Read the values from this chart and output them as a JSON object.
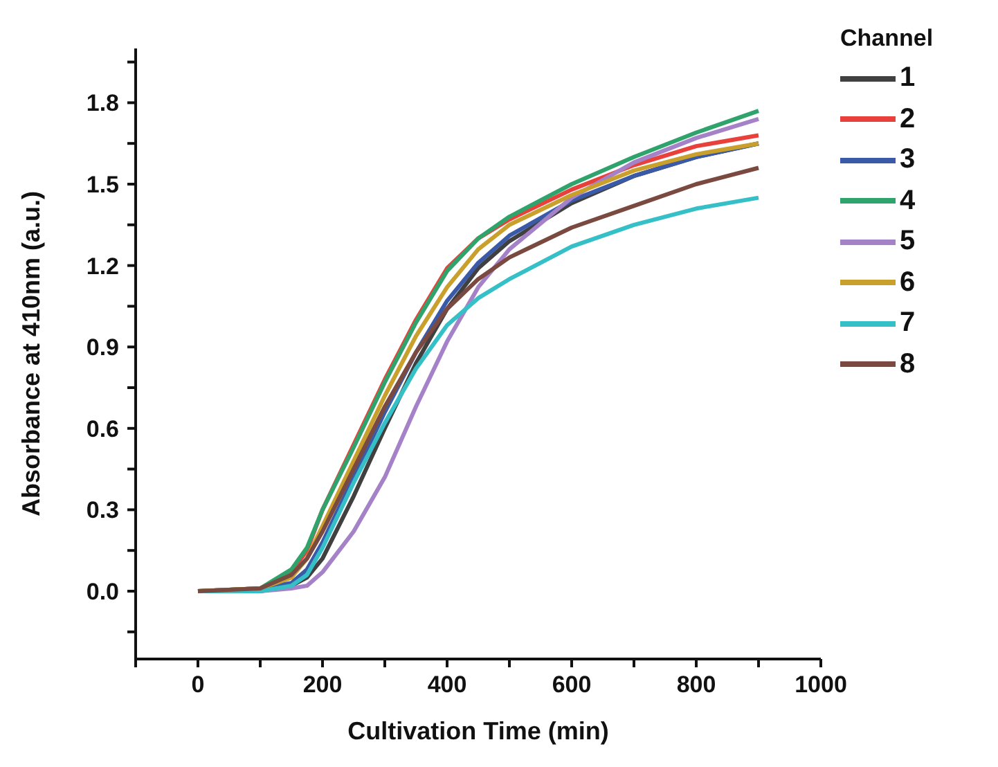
{
  "chart_data": {
    "type": "line",
    "xlabel": "Cultivation Time (min)",
    "ylabel": "Absorbance at 410nm (a.u.)",
    "legend_title": "Channel",
    "x": [
      0,
      100,
      150,
      175,
      200,
      250,
      300,
      350,
      400,
      450,
      500,
      600,
      700,
      800,
      900
    ],
    "series": [
      {
        "name": "1",
        "color": "#404040",
        "values": [
          0,
          0,
          0.02,
          0.05,
          0.12,
          0.35,
          0.6,
          0.84,
          1.04,
          1.19,
          1.29,
          1.43,
          1.53,
          1.6,
          1.65
        ]
      },
      {
        "name": "2",
        "color": "#e8413c",
        "values": [
          0,
          0.01,
          0.07,
          0.15,
          0.3,
          0.54,
          0.78,
          1.0,
          1.19,
          1.3,
          1.37,
          1.48,
          1.57,
          1.64,
          1.68
        ]
      },
      {
        "name": "3",
        "color": "#3a5aa8",
        "values": [
          0,
          0.01,
          0.03,
          0.08,
          0.18,
          0.42,
          0.66,
          0.88,
          1.07,
          1.21,
          1.31,
          1.44,
          1.53,
          1.6,
          1.65
        ]
      },
      {
        "name": "4",
        "color": "#2fa36b",
        "values": [
          0,
          0.01,
          0.08,
          0.16,
          0.3,
          0.53,
          0.77,
          0.99,
          1.18,
          1.3,
          1.38,
          1.5,
          1.6,
          1.69,
          1.77
        ]
      },
      {
        "name": "5",
        "color": "#a582c8",
        "values": [
          0,
          0,
          0.01,
          0.02,
          0.07,
          0.22,
          0.42,
          0.68,
          0.92,
          1.12,
          1.26,
          1.45,
          1.58,
          1.67,
          1.74
        ]
      },
      {
        "name": "6",
        "color": "#c9a02c",
        "values": [
          0,
          0.01,
          0.05,
          0.12,
          0.24,
          0.48,
          0.72,
          0.94,
          1.12,
          1.26,
          1.35,
          1.46,
          1.55,
          1.61,
          1.65
        ]
      },
      {
        "name": "7",
        "color": "#35c0c8",
        "values": [
          0,
          0,
          0.02,
          0.06,
          0.16,
          0.4,
          0.62,
          0.82,
          0.98,
          1.08,
          1.15,
          1.27,
          1.35,
          1.41,
          1.45
        ]
      },
      {
        "name": "8",
        "color": "#7a4a40",
        "values": [
          0,
          0.01,
          0.06,
          0.12,
          0.22,
          0.45,
          0.68,
          0.88,
          1.04,
          1.15,
          1.23,
          1.34,
          1.42,
          1.5,
          1.56
        ]
      }
    ],
    "xlim": [
      -100,
      1000
    ],
    "xticks": [
      {
        "value": -100,
        "label": null
      },
      0,
      {
        "value": 100,
        "label": null
      },
      200,
      {
        "value": 300,
        "label": null
      },
      400,
      {
        "value": 500,
        "label": null
      },
      600,
      {
        "value": 700,
        "label": null
      },
      800,
      {
        "value": 900,
        "label": null
      },
      1000
    ],
    "ylim": [
      -0.25,
      2.0
    ],
    "yticks": [
      {
        "value": -0.15,
        "label": null
      },
      {
        "value": 0,
        "label": "0.0"
      },
      {
        "value": 0.15,
        "label": null
      },
      0.3,
      {
        "value": 0.45,
        "label": null
      },
      0.6,
      {
        "value": 0.75,
        "label": null
      },
      0.9,
      {
        "value": 1.05,
        "label": null
      },
      1.2,
      {
        "value": 1.35,
        "label": null
      },
      1.5,
      {
        "value": 1.65,
        "label": null
      },
      1.8,
      {
        "value": 1.95,
        "label": null
      }
    ],
    "grid": false,
    "legend": "right",
    "marker": "none",
    "line_style": "solid"
  }
}
